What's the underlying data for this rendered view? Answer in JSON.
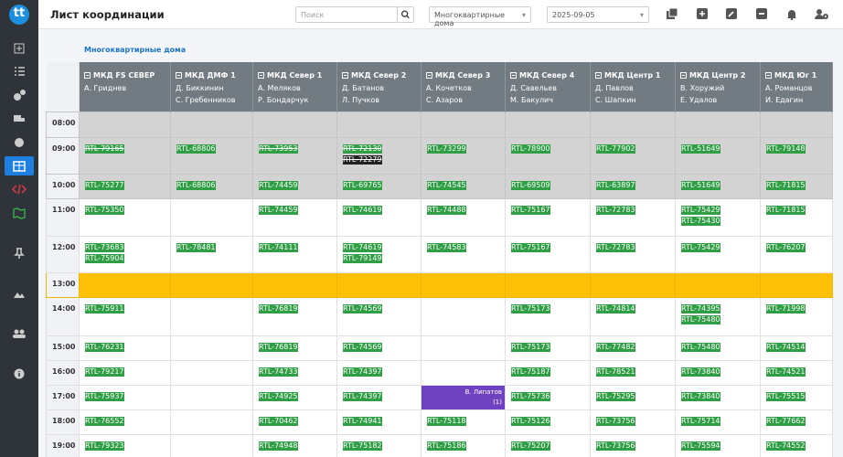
{
  "sidebar": {
    "logo": "tt"
  },
  "topbar": {
    "title": "Лист координации",
    "search_placeholder": "Поиск",
    "filter": "Многоквартирные дома",
    "date": "2025-09-05"
  },
  "table": {
    "group": "Многоквартирные дома",
    "columns": [
      {
        "name": "МКД FS СЕВЕР",
        "lead": "А. Гриднев"
      },
      {
        "name": "МКД ДМФ 1",
        "lead": "Д. Биккинин",
        "assistant": "С. Гребенников"
      },
      {
        "name": "МКД Север 1",
        "lead": "А. Меляков",
        "assistant": "Р. Бондарчук"
      },
      {
        "name": "МКД Север 2",
        "lead": "Д. Батанов",
        "assistant": "Л. Пучков"
      },
      {
        "name": "МКД Север 3",
        "lead": "А. Кочетков",
        "assistant": "С. Азаров"
      },
      {
        "name": "МКД Север 4",
        "lead": "Д. Савельев",
        "assistant": "М. Бакулич"
      },
      {
        "name": "МКД Центр 1",
        "lead": "Д. Павлов",
        "assistant": "С. Шапкин"
      },
      {
        "name": "МКД Центр 2",
        "lead": "В. Хоружий",
        "assistant": "Е. Удалов"
      },
      {
        "name": "МКД Юг 1",
        "lead": "А. Романцов",
        "assistant": "И. Едагин"
      }
    ],
    "rows": [
      {
        "time": "08:00",
        "cells": [
          [],
          [],
          [],
          [],
          [],
          [],
          [],
          [],
          []
        ]
      },
      {
        "time": "09:00",
        "cells": [
          [
            {
              "text": "RTL-79165",
              "struck": true
            }
          ],
          [
            {
              "text": "RTL-68806"
            }
          ],
          [
            {
              "text": "RTL-73953",
              "struck": true
            }
          ],
          [
            {
              "text": "RTL-72130",
              "struck": true
            },
            {
              "text": "RTL-72279",
              "struck": true,
              "dark": true
            }
          ],
          [
            {
              "text": "RTL-73299"
            }
          ],
          [
            {
              "text": "RTL-78900"
            }
          ],
          [
            {
              "text": "RTL-77902"
            }
          ],
          [
            {
              "text": "RTL-51649"
            }
          ],
          [
            {
              "text": "RTL-79148"
            }
          ]
        ]
      },
      {
        "time": "10:00",
        "cells": [
          [
            {
              "text": "RTL-75277"
            }
          ],
          [
            {
              "text": "RTL-68806"
            }
          ],
          [
            {
              "text": "RTL-74459"
            }
          ],
          [
            {
              "text": "RTL-69765"
            }
          ],
          [
            {
              "text": "RTL-74545"
            }
          ],
          [
            {
              "text": "RTL-69509"
            }
          ],
          [
            {
              "text": "RTL-63897"
            }
          ],
          [
            {
              "text": "RTL-51649"
            }
          ],
          [
            {
              "text": "RTL-71815"
            }
          ]
        ]
      },
      {
        "time": "11:00",
        "cells": [
          [
            {
              "text": "RTL-75350"
            }
          ],
          [],
          [
            {
              "text": "RTL-74459"
            }
          ],
          [
            {
              "text": "RTL-74619"
            }
          ],
          [
            {
              "text": "RTL-74488"
            }
          ],
          [
            {
              "text": "RTL-75167"
            }
          ],
          [
            {
              "text": "RTL-72783"
            }
          ],
          [
            {
              "text": "RTL-75429"
            },
            {
              "text": "RTL-75430"
            }
          ],
          [
            {
              "text": "RTL-71815"
            }
          ]
        ]
      },
      {
        "time": "12:00",
        "cells": [
          [
            {
              "text": "RTL-73683"
            },
            {
              "text": "RTL-75904"
            }
          ],
          [
            {
              "text": "RTL-78481"
            }
          ],
          [
            {
              "text": "RTL-74111"
            }
          ],
          [
            {
              "text": "RTL-74619"
            },
            {
              "text": "RTL-79149"
            }
          ],
          [
            {
              "text": "RTL-74583"
            }
          ],
          [
            {
              "text": "RTL-75167"
            }
          ],
          [
            {
              "text": "RTL-72783"
            }
          ],
          [
            {
              "text": "RTL-75429"
            }
          ],
          [
            {
              "text": "RTL-76207"
            }
          ]
        ]
      },
      {
        "time": "13:00",
        "cells": [
          [],
          [],
          [],
          [],
          [],
          [],
          [],
          [],
          []
        ]
      },
      {
        "time": "14:00",
        "cells": [
          [
            {
              "text": "RTL-75911"
            }
          ],
          [],
          [
            {
              "text": "RTL-76819"
            }
          ],
          [
            {
              "text": "RTL-74569"
            }
          ],
          [],
          [
            {
              "text": "RTL-75173"
            }
          ],
          [
            {
              "text": "RTL-74814"
            }
          ],
          [
            {
              "text": "RTL-74395"
            },
            {
              "text": "RTL-75480"
            }
          ],
          [
            {
              "text": "RTL-71998"
            }
          ]
        ]
      },
      {
        "time": "15:00",
        "cells": [
          [
            {
              "text": "RTL-76231"
            }
          ],
          [],
          [
            {
              "text": "RTL-76819"
            }
          ],
          [
            {
              "text": "RTL-74569"
            }
          ],
          [],
          [
            {
              "text": "RTL-75173"
            }
          ],
          [
            {
              "text": "RTL-77482"
            }
          ],
          [
            {
              "text": "RTL-75480"
            }
          ],
          [
            {
              "text": "RTL-74514"
            }
          ]
        ]
      },
      {
        "time": "16:00",
        "cells": [
          [
            {
              "text": "RTL-79217"
            }
          ],
          [],
          [
            {
              "text": "RTL-74733"
            }
          ],
          [
            {
              "text": "RTL-74397"
            }
          ],
          [],
          [
            {
              "text": "RTL-75187"
            }
          ],
          [
            {
              "text": "RTL-78521"
            }
          ],
          [
            {
              "text": "RTL-73840"
            }
          ],
          [
            {
              "text": "RTL-74521"
            }
          ]
        ]
      },
      {
        "time": "17:00",
        "cells": [
          [
            {
              "text": "RTL-75937"
            }
          ],
          [],
          [
            {
              "text": "RTL-74925"
            }
          ],
          [
            {
              "text": "RTL-74397"
            }
          ],
          {
            "name": "В. Липатов",
            "count": "(1)"
          },
          [
            {
              "text": "RTL-75736"
            }
          ],
          [
            {
              "text": "RTL-75295"
            }
          ],
          [
            {
              "text": "RTL-73840"
            }
          ],
          [
            {
              "text": "RTL-75515"
            }
          ]
        ]
      },
      {
        "time": "18:00",
        "cells": [
          [
            {
              "text": "RTL-76552"
            }
          ],
          [],
          [
            {
              "text": "RTL-70462"
            }
          ],
          [
            {
              "text": "RTL-74941"
            }
          ],
          [
            {
              "text": "RTL-75118"
            }
          ],
          [
            {
              "text": "RTL-75126"
            }
          ],
          [
            {
              "text": "RTL-73756"
            }
          ],
          [
            {
              "text": "RTL-75714"
            }
          ],
          [
            {
              "text": "RTL-77662"
            }
          ]
        ]
      },
      {
        "time": "19:00",
        "cells": [
          [
            {
              "text": "RTL-79323"
            }
          ],
          [],
          [
            {
              "text": "RTL-74948"
            }
          ],
          [
            {
              "text": "RTL-75182"
            }
          ],
          [
            {
              "text": "RTL-75186"
            }
          ],
          [
            {
              "text": "RTL-75207"
            }
          ],
          [
            {
              "text": "RTL-73756"
            }
          ],
          [
            {
              "text": "RTL-75594"
            }
          ],
          [
            {
              "text": "RTL-74552"
            }
          ]
        ]
      }
    ]
  }
}
